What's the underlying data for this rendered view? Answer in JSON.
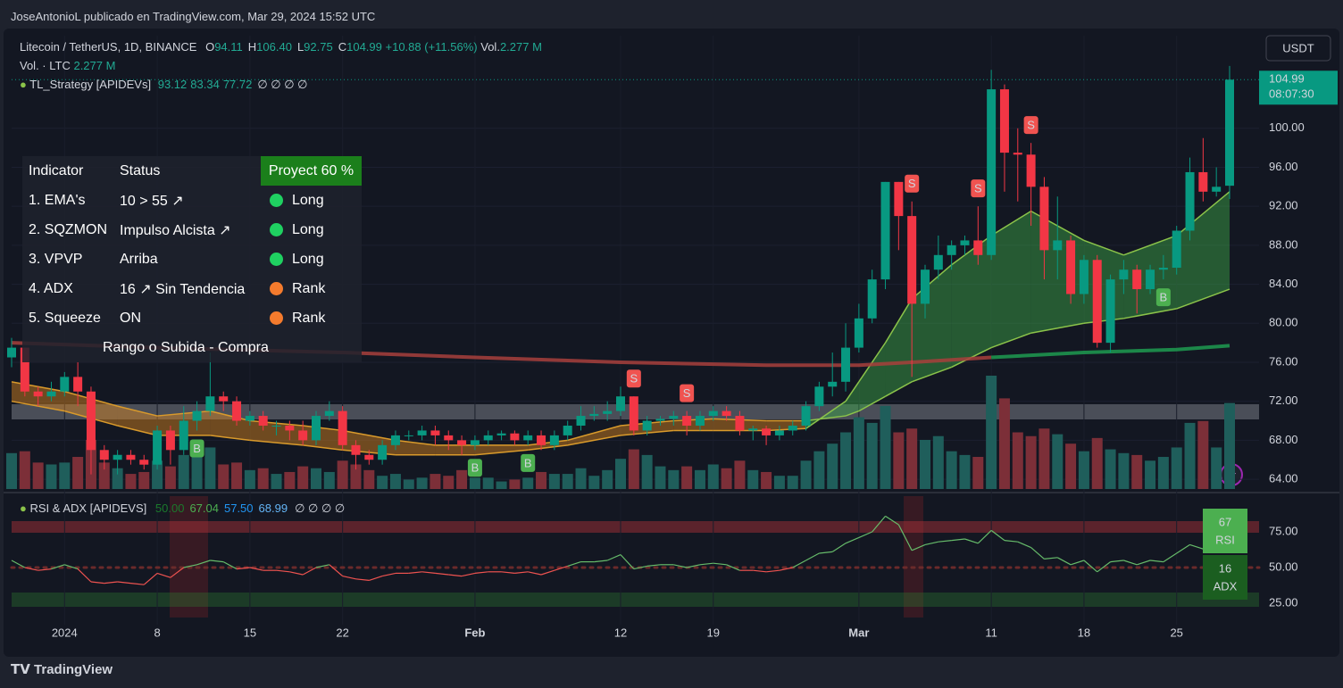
{
  "caption": "JoseAntonioL publicado en TradingView.com, Mar 29, 2024 15:52 UTC",
  "brand": "TradingView",
  "chart_data": {
    "type": "candlestick",
    "title": "Litecoin / TetherUS, 1D, BINANCE",
    "ohlc_legend": [
      {
        "key": "O",
        "value": "94.11"
      },
      {
        "key": "H",
        "value": "106.40"
      },
      {
        "key": "L",
        "value": "92.75"
      },
      {
        "key": "C",
        "value": "104.99"
      }
    ],
    "change": "+10.88 (+11.56%)",
    "volume_legend": {
      "key": "Vol.",
      "value": "2.277 M"
    },
    "volume_title": "Vol. · LTC",
    "volume_value": "2.277 M",
    "strategy_legend": {
      "name": "TL_Strategy [APIDEVs]",
      "values": [
        "93.12",
        "83.34",
        "77.72"
      ],
      "empty": "∅ ∅ ∅ ∅"
    },
    "currency": "USDT",
    "last_price": "104.99",
    "countdown": "08:07:30",
    "up_color": "#089981",
    "down_color": "#f23645",
    "volume_up_color": "#1f5e5b",
    "volume_down_color": "#7c2f38",
    "ylim": [
      63,
      109.5
    ],
    "yticks": [
      {
        "value": 64,
        "label": "64.00"
      },
      {
        "value": 68,
        "label": "68.00"
      },
      {
        "value": 72,
        "label": "72.00"
      },
      {
        "value": 76,
        "label": "76.00"
      },
      {
        "value": 80,
        "label": "80.00"
      },
      {
        "value": 84,
        "label": "84.00"
      },
      {
        "value": 88,
        "label": "88.00"
      },
      {
        "value": 92,
        "label": "92.00"
      },
      {
        "value": 96,
        "label": "96.00"
      },
      {
        "value": 100,
        "label": "100.00"
      }
    ],
    "volume_ylim": [
      0,
      12
    ],
    "xlim": [
      0,
      92
    ],
    "xticks": [
      {
        "value": 4,
        "label": "2024"
      },
      {
        "value": 11,
        "label": "8"
      },
      {
        "value": 18,
        "label": "15"
      },
      {
        "value": 25,
        "label": "22"
      },
      {
        "value": 35,
        "label": "Feb"
      },
      {
        "value": 46,
        "label": "12"
      },
      {
        "value": 53,
        "label": "19"
      },
      {
        "value": 64,
        "label": "Mar"
      },
      {
        "value": 74,
        "label": "11"
      },
      {
        "value": 81,
        "label": "18"
      },
      {
        "value": 88,
        "label": "25"
      }
    ],
    "open": [
      76.5,
      77.5,
      73,
      72.5,
      73,
      74.5,
      73,
      67,
      66,
      66.5,
      66,
      65.5,
      69,
      67,
      70,
      71,
      72.5,
      72,
      70,
      70.5,
      69.5,
      69.5,
      69,
      68,
      70.5,
      71,
      67.5,
      66.5,
      66,
      67.5,
      68.5,
      68.5,
      69,
      68.5,
      68,
      67.5,
      68,
      68.5,
      68.7,
      68,
      68.5,
      67.5,
      68.5,
      69.5,
      70.5,
      70.7,
      71,
      72.5,
      69,
      70,
      70.2,
      70.5,
      69.5,
      70.5,
      71,
      70.5,
      69,
      69.2,
      68.5,
      69,
      69.5,
      71.5,
      73.5,
      74,
      77.5,
      80.5,
      84.5,
      94.5,
      91,
      82,
      85.5,
      87,
      88,
      88.5,
      87,
      104,
      97.5,
      97.3,
      94,
      87.5,
      88.5,
      83,
      86.5,
      78,
      84.5,
      85.5,
      83.5,
      85.5,
      85.7,
      89.5,
      95.5,
      93.5,
      94.11
    ],
    "high": [
      78.5,
      77.5,
      73.5,
      74,
      75,
      76,
      73.5,
      67.5,
      67,
      67,
      66.5,
      69.5,
      69.5,
      71.5,
      72,
      77,
      73,
      72.5,
      71,
      71,
      70,
      70,
      70,
      71,
      72,
      71.5,
      68,
      67,
      68,
      69,
      69,
      69.5,
      69.5,
      69,
      68.5,
      68.5,
      69,
      69,
      69,
      69,
      69,
      69,
      70,
      71.5,
      71.5,
      72,
      73.5,
      72.5,
      70.5,
      70.5,
      71,
      71,
      71,
      71.5,
      71.5,
      71,
      69.5,
      69.5,
      69.5,
      70,
      72,
      74,
      77,
      80,
      82,
      85.5,
      94.5,
      94.5,
      92.5,
      86,
      89,
      88.5,
      89,
      92,
      106,
      104.5,
      100,
      98.5,
      95,
      93,
      89,
      87,
      87,
      85,
      86.5,
      86,
      86,
      87,
      90,
      97,
      99,
      96,
      106.4
    ],
    "low": [
      75.5,
      72.5,
      71.5,
      72,
      72.5,
      71.5,
      64.5,
      65,
      64.5,
      65.5,
      65,
      65,
      65.5,
      66.5,
      69,
      70.5,
      71,
      69.5,
      69.5,
      69,
      68.5,
      68,
      67.5,
      67.5,
      70,
      67,
      65,
      65.5,
      65.5,
      67,
      68,
      68,
      67.5,
      67,
      66.5,
      67,
      67.5,
      68,
      67.5,
      67.5,
      67,
      67,
      68,
      69,
      70,
      70,
      70.5,
      68.5,
      68.5,
      69.5,
      69.5,
      68.5,
      69,
      70,
      70,
      68.5,
      68,
      67.5,
      68,
      68.5,
      69,
      71,
      72.5,
      73,
      77,
      80,
      83.5,
      87.5,
      74.5,
      80.5,
      84.5,
      85.5,
      87,
      86,
      86.5,
      93.5,
      92.5,
      90,
      84.5,
      84.5,
      82,
      82,
      77.5,
      77,
      83,
      81,
      83,
      84.5,
      85,
      88.5,
      92.5,
      93,
      92.75
    ],
    "close": [
      77.5,
      73,
      72.5,
      73,
      74.5,
      73,
      67,
      66,
      66.5,
      66,
      65.5,
      69,
      67,
      70,
      71,
      72.5,
      72,
      70,
      70.5,
      69.5,
      69.5,
      69,
      68,
      70.5,
      71,
      67.5,
      66.5,
      66,
      67.5,
      68.5,
      68.5,
      69,
      68.5,
      68,
      67.5,
      68,
      68.5,
      68.7,
      68,
      68.5,
      67.5,
      68.5,
      69.5,
      70.5,
      70.7,
      71,
      72.5,
      69,
      70,
      70.2,
      70.5,
      69.5,
      70.5,
      71,
      70.5,
      69,
      69.2,
      68.5,
      69,
      69.5,
      71.5,
      73.5,
      74,
      77.5,
      80.5,
      84.5,
      94.5,
      91,
      82,
      85.5,
      87,
      88,
      88.5,
      87,
      104,
      97.5,
      97.3,
      94,
      87.5,
      88.5,
      83,
      86.5,
      78,
      84.5,
      85.5,
      83.5,
      85.5,
      85.7,
      89.5,
      95.5,
      93.5,
      94,
      104.99
    ],
    "volume": [
      0.95,
      1.0,
      0.7,
      0.65,
      0.7,
      0.85,
      1.3,
      0.7,
      0.55,
      0.4,
      0.45,
      0.75,
      0.6,
      0.9,
      1.0,
      1.1,
      0.65,
      0.7,
      0.5,
      0.55,
      0.4,
      0.45,
      0.6,
      0.55,
      0.45,
      0.75,
      0.65,
      0.5,
      0.35,
      0.4,
      0.25,
      0.3,
      0.4,
      0.35,
      0.5,
      0.3,
      0.3,
      0.2,
      0.25,
      0.3,
      0.45,
      0.4,
      0.4,
      0.55,
      0.35,
      0.5,
      0.8,
      1.05,
      0.9,
      0.6,
      0.5,
      0.6,
      0.5,
      0.65,
      0.55,
      0.75,
      0.5,
      0.45,
      0.35,
      0.35,
      0.75,
      1.0,
      1.2,
      1.5,
      1.9,
      1.75,
      2.2,
      1.5,
      1.6,
      1.3,
      1.4,
      1.0,
      0.9,
      0.85,
      3.0,
      2.4,
      1.5,
      1.4,
      1.6,
      1.45,
      1.2,
      1.0,
      1.35,
      1.05,
      0.95,
      0.9,
      0.75,
      0.85,
      1.1,
      1.75,
      1.8,
      1.1,
      2.277
    ],
    "band": {
      "x": [
        0,
        4,
        8,
        11,
        15,
        18,
        22,
        25,
        29,
        32,
        35,
        39,
        42,
        46,
        50,
        53,
        57,
        60,
        63,
        64,
        66,
        68,
        71,
        74,
        77,
        81,
        84,
        88,
        92
      ],
      "fast": [
        72,
        71,
        69.5,
        68.5,
        68.5,
        68,
        67.5,
        67,
        66.5,
        66.5,
        66.5,
        67,
        67.5,
        68.5,
        69,
        69,
        69,
        69.2,
        72,
        74,
        78,
        82.5,
        86,
        89,
        91.5,
        88.5,
        87,
        89,
        93.5
      ],
      "slow": [
        74,
        73,
        71.5,
        70.5,
        71,
        70,
        69.5,
        69,
        68,
        67.5,
        67.5,
        67.5,
        68,
        69.5,
        70,
        70.2,
        70,
        70,
        70.5,
        71,
        72.5,
        74,
        75.5,
        77.5,
        79,
        80,
        80.5,
        81.5,
        83.5
      ],
      "up_fill": "#3fae4a",
      "down_fill": "#e08a1e",
      "up_edge": "#8bc34a",
      "down_edge": "#d99a2b"
    },
    "lines": [
      {
        "x": [
          0,
          11,
          25,
          35,
          46,
          57,
          64,
          68,
          74
        ],
        "values": [
          78,
          77.5,
          77,
          76.5,
          76,
          75.7,
          75.7,
          76,
          76.5
        ],
        "color": "#a8403c"
      },
      {
        "x": [
          74,
          81,
          88,
          92
        ],
        "values": [
          76.5,
          77,
          77.3,
          77.7
        ],
        "color": "#1e9b50"
      }
    ],
    "signals": [
      {
        "x": 14,
        "label": "B"
      },
      {
        "x": 35,
        "label": "B"
      },
      {
        "x": 39,
        "label": "B"
      },
      {
        "x": 47,
        "label": "S"
      },
      {
        "x": 51,
        "label": "S"
      },
      {
        "x": 68,
        "label": "S"
      },
      {
        "x": 73,
        "label": "S"
      },
      {
        "x": 77,
        "label": "S"
      },
      {
        "x": 87,
        "label": "B"
      }
    ],
    "buy_color": "#4caf50",
    "sell_color": "#f05350",
    "table": {
      "header": [
        "Indicator",
        "Status",
        "Proyect 60 %"
      ],
      "rows": [
        [
          "1. EMA's",
          "10 > 55 ↗",
          "Long"
        ],
        [
          "2. SQZMON",
          "Impulso Alcista ↗",
          "Long"
        ],
        [
          "3. VPVP",
          "Arriba",
          "Long"
        ],
        [
          "4. ADX",
          "16 ↗ Sin Tendencia",
          "Rank"
        ],
        [
          "5. Squeeze",
          "ON",
          "Rank"
        ]
      ],
      "dot_colors": [
        "#1fd161",
        "#1fd161",
        "#1fd161",
        "#f47b2d",
        "#f47b2d"
      ],
      "footer": "Rango o Subida - Compra"
    }
  },
  "rsi_chart": {
    "type": "line",
    "title": "RSI & ADX [APIDEVS]",
    "legend_values": [
      {
        "text": "50.00",
        "color": "#1b7a2c"
      },
      {
        "text": "67.04",
        "color": "#4caf50"
      },
      {
        "text": "57.50",
        "color": "#2196f3"
      },
      {
        "text": "68.99",
        "color": "#64b5f6"
      }
    ],
    "empty": "∅ ∅ ∅ ∅",
    "ylim": [
      10,
      100
    ],
    "yticks": [
      {
        "value": 25,
        "label": "25.00"
      },
      {
        "value": 50,
        "label": "50.00"
      },
      {
        "value": 75,
        "label": "75.00"
      }
    ],
    "values": [
      55,
      50,
      48,
      49,
      52,
      49,
      40,
      39,
      40,
      39,
      38,
      46,
      43,
      50,
      52,
      55,
      54,
      49,
      50,
      48,
      48,
      47,
      45,
      50,
      52,
      44,
      42,
      41,
      44,
      46,
      46,
      47,
      46,
      45,
      44,
      46,
      47,
      47,
      46,
      47,
      45,
      48,
      51,
      54,
      54,
      55,
      59,
      49,
      51,
      52,
      52,
      50,
      52,
      53,
      52,
      48,
      48,
      47,
      48,
      50,
      55,
      60,
      61,
      67,
      71,
      75,
      86,
      80,
      62,
      66,
      68,
      69,
      70,
      67,
      76,
      69,
      68,
      64,
      56,
      57,
      52,
      55,
      47,
      54,
      55,
      52,
      55,
      54,
      60,
      66,
      63,
      63,
      67.04
    ],
    "up_color": "#66bb6a",
    "down_color": "#ef5350",
    "badges": [
      {
        "value": "67",
        "label": "RSI",
        "color": "#4caf50"
      },
      {
        "value": "16",
        "label": "ADX",
        "color": "#1b5e20"
      }
    ]
  }
}
